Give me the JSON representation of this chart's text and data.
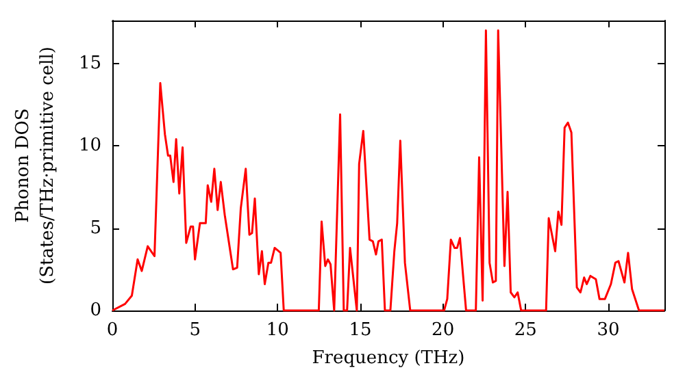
{
  "chart_data": {
    "type": "line",
    "xlabel": "Frequency (THz)",
    "ylabel": "Phonon DOS\n(States/THz·primitive cell)",
    "xlim": [
      0,
      33.4
    ],
    "ylim": [
      0,
      17.6
    ],
    "xticks": [
      0,
      5,
      10,
      15,
      20,
      25,
      30
    ],
    "yticks": [
      0,
      5,
      10,
      15
    ],
    "grid": false,
    "marker": "none",
    "line_style": "solid",
    "series": [
      {
        "color": "#ff0000",
        "x": [
          0,
          0.77,
          1.18,
          1.53,
          1.78,
          2.14,
          2.55,
          2.9,
          3.18,
          3.37,
          3.5,
          3.7,
          3.86,
          4.05,
          4.25,
          4.47,
          4.74,
          4.88,
          5.0,
          5.3,
          5.65,
          5.77,
          5.98,
          6.17,
          6.37,
          6.56,
          6.8,
          7.3,
          7.55,
          7.77,
          8.07,
          8.29,
          8.45,
          8.62,
          8.86,
          9.05,
          9.22,
          9.44,
          9.6,
          9.82,
          10.18,
          10.37,
          12.49,
          12.66,
          12.88,
          13.04,
          13.2,
          13.42,
          13.78,
          14.0,
          14.2,
          14.38,
          14.79,
          14.93,
          15.18,
          15.56,
          15.76,
          15.95,
          16.1,
          16.3,
          16.49,
          16.82,
          17.06,
          17.23,
          17.42,
          17.7,
          18.02,
          20.07,
          20.26,
          20.48,
          20.7,
          20.86,
          21.03,
          21.22,
          21.4,
          21.99,
          22.19,
          22.4,
          22.6,
          22.82,
          23.02,
          23.2,
          23.34,
          23.72,
          23.91,
          24.1,
          24.32,
          24.52,
          24.73,
          26.24,
          26.4,
          26.79,
          26.98,
          27.17,
          27.36,
          27.56,
          27.77,
          28.1,
          28.32,
          28.54,
          28.7,
          28.92,
          29.25,
          29.47,
          29.8,
          30.16,
          30.43,
          30.62,
          30.98,
          31.2,
          31.44,
          31.86,
          33.4
        ],
        "values": [
          0,
          0.4,
          0.9,
          3.1,
          2.4,
          3.9,
          3.3,
          13.8,
          10.7,
          9.4,
          9.4,
          7.8,
          10.4,
          7.1,
          9.9,
          4.1,
          5.1,
          5.1,
          3.1,
          5.3,
          5.3,
          7.6,
          6.6,
          8.6,
          6.1,
          7.8,
          5.8,
          2.5,
          2.6,
          6.2,
          8.6,
          4.6,
          4.7,
          6.8,
          2.2,
          3.6,
          1.6,
          2.9,
          2.9,
          3.8,
          3.5,
          0,
          0,
          5.4,
          2.7,
          3.1,
          2.8,
          0,
          11.9,
          0,
          0,
          3.8,
          0,
          8.9,
          10.9,
          4.3,
          4.2,
          3.4,
          4.2,
          4.3,
          0,
          0,
          3.6,
          5.3,
          10.3,
          2.9,
          0,
          0,
          0.7,
          4.3,
          3.8,
          3.8,
          4.4,
          2.1,
          0,
          0,
          9.3,
          0.6,
          17.0,
          2.9,
          1.7,
          1.8,
          17.0,
          2.7,
          7.2,
          1.1,
          0.8,
          1.1,
          0,
          0,
          5.6,
          3.6,
          6.0,
          5.2,
          11.1,
          11.4,
          10.8,
          1.4,
          1.1,
          2.0,
          1.6,
          2.1,
          1.9,
          0.7,
          0.7,
          1.6,
          2.9,
          3.0,
          1.7,
          3.5,
          1.3,
          0,
          0
        ]
      }
    ]
  }
}
